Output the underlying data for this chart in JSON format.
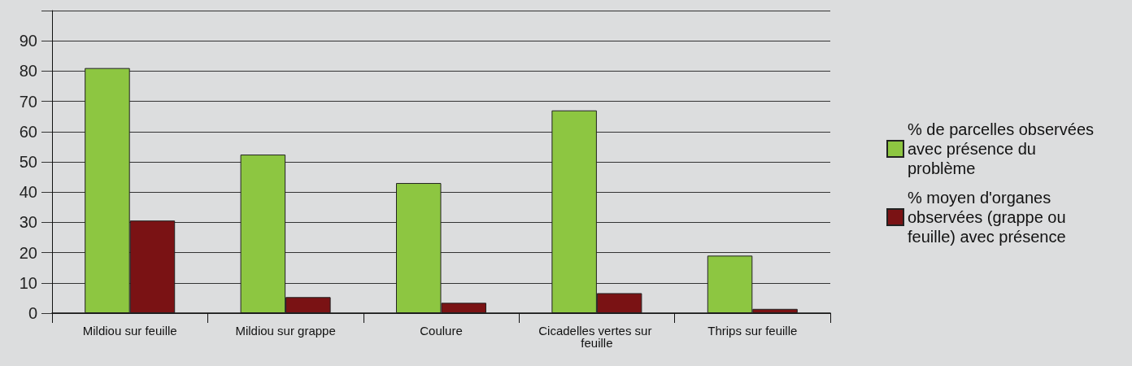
{
  "chart_data": {
    "type": "bar",
    "categories": [
      "Mildiou sur feuille",
      "Mildiou sur grappe",
      "Coulure",
      "Cicadelles vertes sur feuille",
      "Thrips sur feuille"
    ],
    "series": [
      {
        "name": "% de parcelles observées avec présence du problème",
        "color": "#8dc641",
        "values": [
          81,
          52.4,
          43,
          67,
          19
        ]
      },
      {
        "name": "% moyen d'organes observées (grappe ou feuille) avec présence",
        "color": "#7a1214",
        "values": [
          30.6,
          5.3,
          3.4,
          6.6,
          1.4
        ]
      }
    ],
    "ylim": [
      0,
      100
    ],
    "yticks": [
      0,
      10,
      20,
      30,
      40,
      50,
      60,
      70,
      80,
      90,
      {
        "value": 100,
        "label": null
      }
    ],
    "grid": true,
    "legend": "right"
  }
}
